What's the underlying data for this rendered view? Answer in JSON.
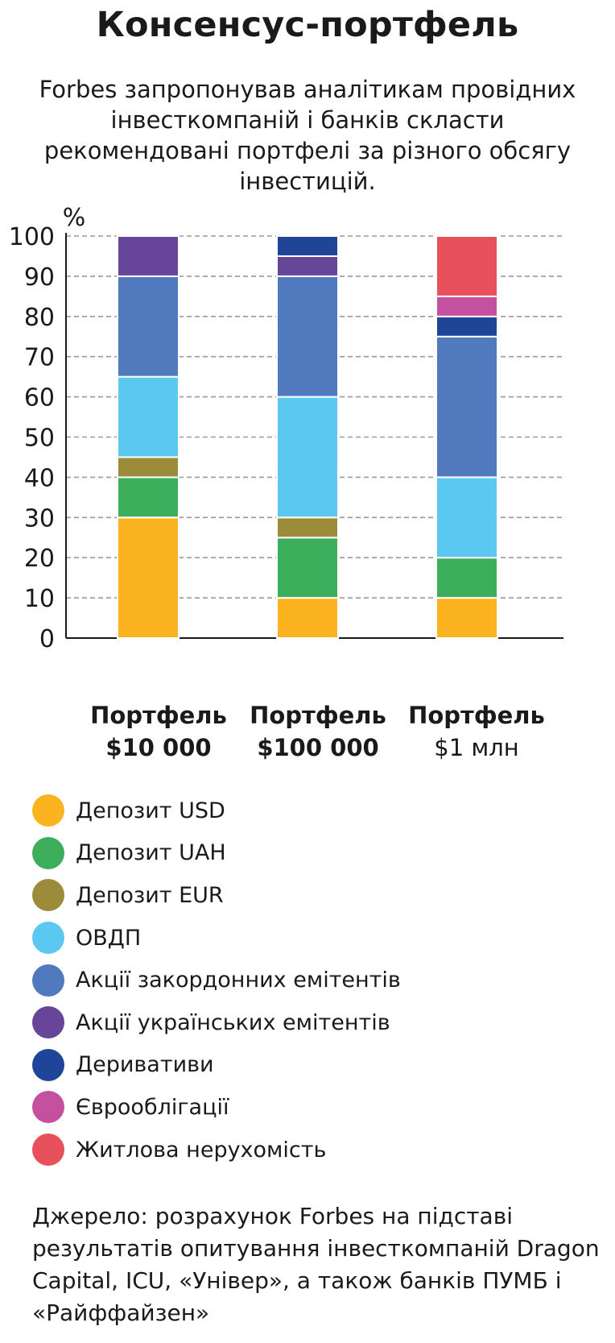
{
  "title": "Консенсус-портфель",
  "subtitle": "Forbes запропонував аналітикам провідних інвесткомпаній і банків скласти рекомендовані портфелі за різного обсягу інвестицій.",
  "chart_data": {
    "type": "bar",
    "stacked": true,
    "ylabel": "%",
    "ylim": [
      0,
      100
    ],
    "yticks": [
      0,
      10,
      20,
      30,
      40,
      50,
      60,
      70,
      80,
      90,
      100
    ],
    "grid": true,
    "categories": [
      {
        "line1": "Портфель",
        "line2": "$10 000"
      },
      {
        "line1": "Портфель",
        "line2": "$100 000"
      },
      {
        "line1": "Портфель",
        "line2": "$1 млн"
      }
    ],
    "series": [
      {
        "name": "Депозит USD",
        "color": "#FBB41F",
        "values": [
          30,
          10,
          10
        ]
      },
      {
        "name": "Депозит UAH",
        "color": "#3DAE5C",
        "values": [
          10,
          15,
          10
        ]
      },
      {
        "name": "Депозит EUR",
        "color": "#9C8B3A",
        "values": [
          5,
          5,
          0
        ]
      },
      {
        "name": "ОВДП",
        "color": "#5BC8F2",
        "values": [
          20,
          30,
          20
        ]
      },
      {
        "name": "Акції закордонних емітентів",
        "color": "#5179BD",
        "values": [
          25,
          30,
          35
        ]
      },
      {
        "name": "Акції українських емітентів",
        "color": "#67469A",
        "values": [
          10,
          5,
          0
        ]
      },
      {
        "name": "Деривативи",
        "color": "#1E4597",
        "values": [
          0,
          5,
          5
        ]
      },
      {
        "name": "Єврооблігації",
        "color": "#C450A0",
        "values": [
          0,
          0,
          5
        ]
      },
      {
        "name": "Житлова нерухомість",
        "color": "#E8505B",
        "values": [
          0,
          0,
          15
        ]
      }
    ]
  },
  "source": "Джерело: розрахунок Forbes на підставі результатів опитування інвесткомпаній Dragon Capital, ICU, «Універ», а також банків ПУМБ і «Райффайзен»"
}
